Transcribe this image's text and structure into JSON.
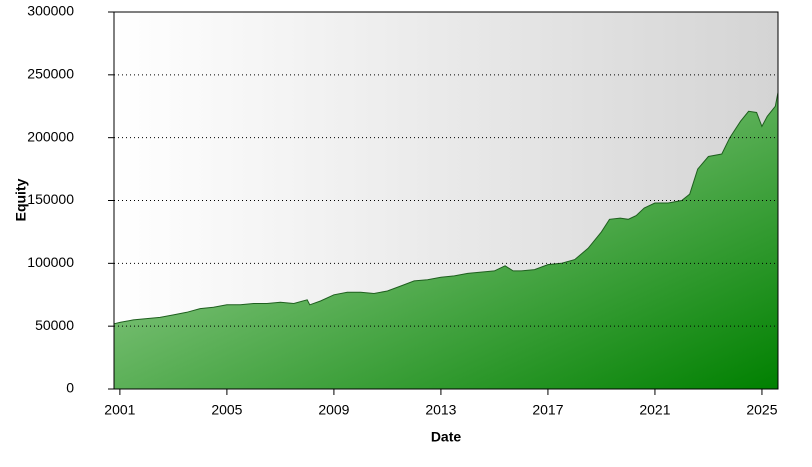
{
  "chart_data": {
    "type": "area",
    "x_label": "Date",
    "y_label": "Equity",
    "x": [
      2000.8,
      2001.0,
      2001.5,
      2002.0,
      2002.5,
      2003.0,
      2003.5,
      2004.0,
      2004.5,
      2005.0,
      2005.5,
      2006.0,
      2006.5,
      2007.0,
      2007.5,
      2008.0,
      2008.1,
      2008.5,
      2009.0,
      2009.5,
      2010.0,
      2010.5,
      2011.0,
      2011.5,
      2012.0,
      2012.5,
      2013.0,
      2013.5,
      2014.0,
      2014.5,
      2015.0,
      2015.4,
      2015.7,
      2016.0,
      2016.5,
      2017.0,
      2017.5,
      2018.0,
      2018.5,
      2019.0,
      2019.3,
      2019.7,
      2020.0,
      2020.3,
      2020.6,
      2021.0,
      2021.5,
      2022.0,
      2022.3,
      2022.6,
      2023.0,
      2023.5,
      2023.8,
      2024.2,
      2024.5,
      2024.8,
      2025.0,
      2025.2,
      2025.5,
      2025.6
    ],
    "series": [
      {
        "name": "Equity",
        "color": "#008000",
        "values": [
          52000,
          53000,
          55000,
          56000,
          57000,
          59000,
          61000,
          64000,
          65000,
          67000,
          67000,
          68000,
          68000,
          69000,
          68000,
          71000,
          67000,
          70000,
          75000,
          77000,
          77000,
          76000,
          78000,
          82000,
          86000,
          87000,
          89000,
          90000,
          92000,
          93000,
          94000,
          98000,
          94000,
          94000,
          95000,
          99000,
          100000,
          103000,
          112000,
          125000,
          135000,
          136000,
          135000,
          138000,
          144000,
          148000,
          148000,
          150000,
          155000,
          175000,
          185000,
          187000,
          200000,
          213000,
          221000,
          220000,
          209000,
          217000,
          225000,
          236000
        ]
      }
    ],
    "xlim": [
      2000.78,
      2025.6
    ],
    "xticks": [
      2001,
      2005,
      2009,
      2013,
      2017,
      2021,
      2025
    ],
    "ylim": [
      0,
      300000
    ],
    "yticks": [
      0,
      50000,
      100000,
      150000,
      200000,
      250000,
      300000
    ],
    "grid": true
  }
}
